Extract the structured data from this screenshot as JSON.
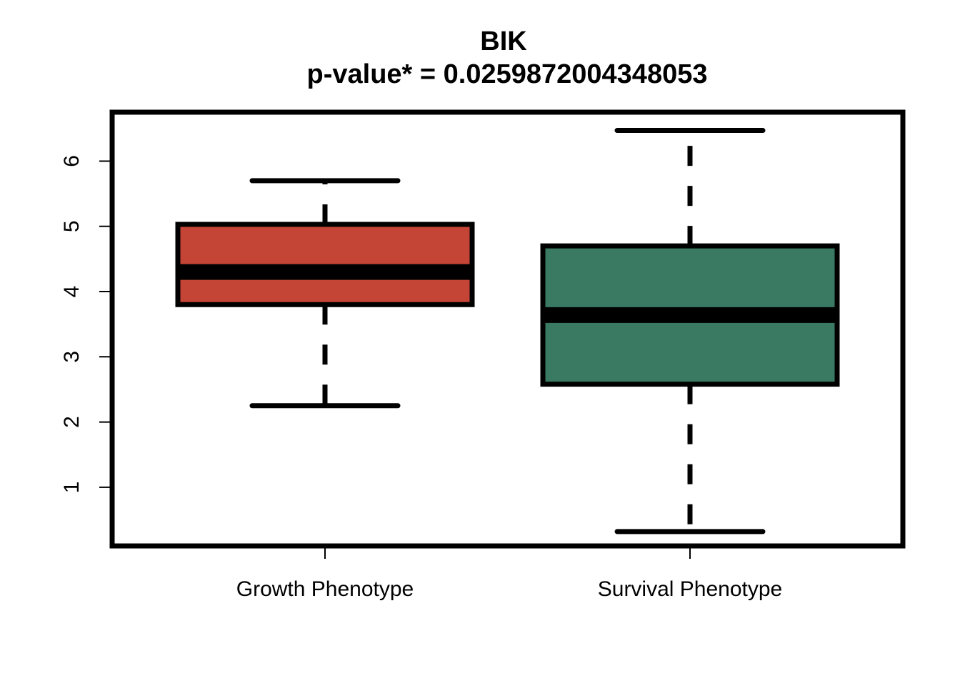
{
  "chart_data": {
    "type": "boxplot",
    "title": "BIK",
    "subtitle": "p-value* = 0.0259872004348053",
    "xlabel": "",
    "ylabel": "",
    "categories": [
      "Growth Phenotype",
      "Survival Phenotype"
    ],
    "y_ticks": [
      1,
      2,
      3,
      4,
      5,
      6
    ],
    "ylim": [
      0.1,
      6.75
    ],
    "grid": false,
    "legend": "none",
    "boxes": [
      {
        "category": "Growth Phenotype",
        "whisker_low": 2.25,
        "q1": 3.8,
        "median": 4.3,
        "q3": 5.03,
        "whisker_high": 5.7,
        "color": "#C44536"
      },
      {
        "category": "Survival Phenotype",
        "whisker_low": 0.32,
        "q1": 2.58,
        "median": 3.64,
        "q3": 4.7,
        "whisker_high": 6.47,
        "color": "#3A7A63"
      }
    ]
  }
}
